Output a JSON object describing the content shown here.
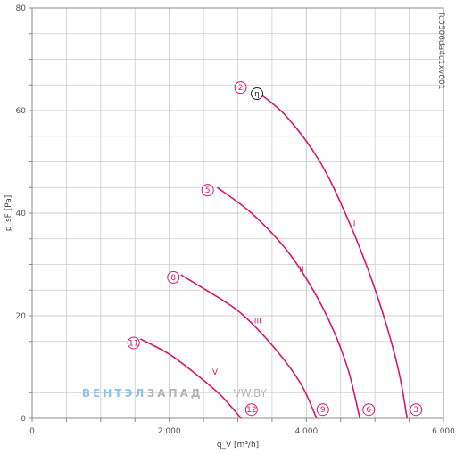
{
  "chart_data": {
    "type": "line",
    "xlabel": "q_V [m³/h]",
    "ylabel": "p_sF [Pa]",
    "xlim": [
      0,
      6000
    ],
    "ylim": [
      0,
      80
    ],
    "x_ticks": [
      {
        "value": 0,
        "label": "0"
      },
      {
        "value": 2000,
        "label": "2.000"
      },
      {
        "value": 4000,
        "label": "4.000"
      },
      {
        "value": 6000,
        "label": "6.000"
      }
    ],
    "y_ticks": [
      {
        "value": 0,
        "label": "0"
      },
      {
        "value": 20,
        "label": "20"
      },
      {
        "value": 40,
        "label": "40"
      },
      {
        "value": 60,
        "label": "60"
      },
      {
        "value": 80,
        "label": "80"
      }
    ],
    "grid": true,
    "code": "fc0506da4c1xv001",
    "series": [
      {
        "name": "I",
        "label_at": [
          4700,
          37.5
        ],
        "points": [
          [
            3250,
            64
          ],
          [
            3700,
            59
          ],
          [
            4200,
            50
          ],
          [
            4600,
            39
          ],
          [
            4900,
            29
          ],
          [
            5150,
            19
          ],
          [
            5350,
            9
          ],
          [
            5470,
            0
          ]
        ]
      },
      {
        "name": "II",
        "label_at": [
          3930,
          28.5
        ],
        "points": [
          [
            2700,
            45
          ],
          [
            3200,
            40
          ],
          [
            3700,
            33
          ],
          [
            4100,
            25
          ],
          [
            4400,
            17
          ],
          [
            4620,
            9
          ],
          [
            4780,
            0
          ]
        ]
      },
      {
        "name": "III",
        "label_at": [
          3290,
          18.5
        ],
        "points": [
          [
            2170,
            28
          ],
          [
            2600,
            24.5
          ],
          [
            3000,
            21
          ],
          [
            3350,
            16.5
          ],
          [
            3700,
            11
          ],
          [
            3950,
            6
          ],
          [
            4150,
            0
          ]
        ]
      },
      {
        "name": "IV",
        "label_at": [
          2650,
          8.5
        ],
        "points": [
          [
            1580,
            15.5
          ],
          [
            2000,
            12.5
          ],
          [
            2400,
            8.5
          ],
          [
            2750,
            4.5
          ],
          [
            3050,
            0
          ]
        ]
      }
    ],
    "markers": [
      {
        "label": "2",
        "x": 3040,
        "y": 64.5
      },
      {
        "label": "η",
        "x": 3280,
        "y": 63.3,
        "dark": true
      },
      {
        "label": "5",
        "x": 2560,
        "y": 44.5
      },
      {
        "label": "8",
        "x": 2060,
        "y": 27.5
      },
      {
        "label": "11",
        "x": 1480,
        "y": 14.7
      },
      {
        "label": "12",
        "x": 3200,
        "y": 1.7
      },
      {
        "label": "9",
        "x": 4240,
        "y": 1.7
      },
      {
        "label": "6",
        "x": 4910,
        "y": 1.7
      },
      {
        "label": "3",
        "x": 5600,
        "y": 1.7
      }
    ],
    "colors": {
      "curve": "#d6166f",
      "grid": "#cccccc",
      "axis": "#888888",
      "marker_dark": "#222222"
    }
  },
  "watermark": {
    "part1": "ВЕНТЭЛ",
    "part2": "ЗАПАД",
    "part3": "VW.BY",
    "color_blue": "#8ec3e6",
    "color_grey": "#b5b5b5",
    "x": 1200,
    "y": 4.2
  }
}
